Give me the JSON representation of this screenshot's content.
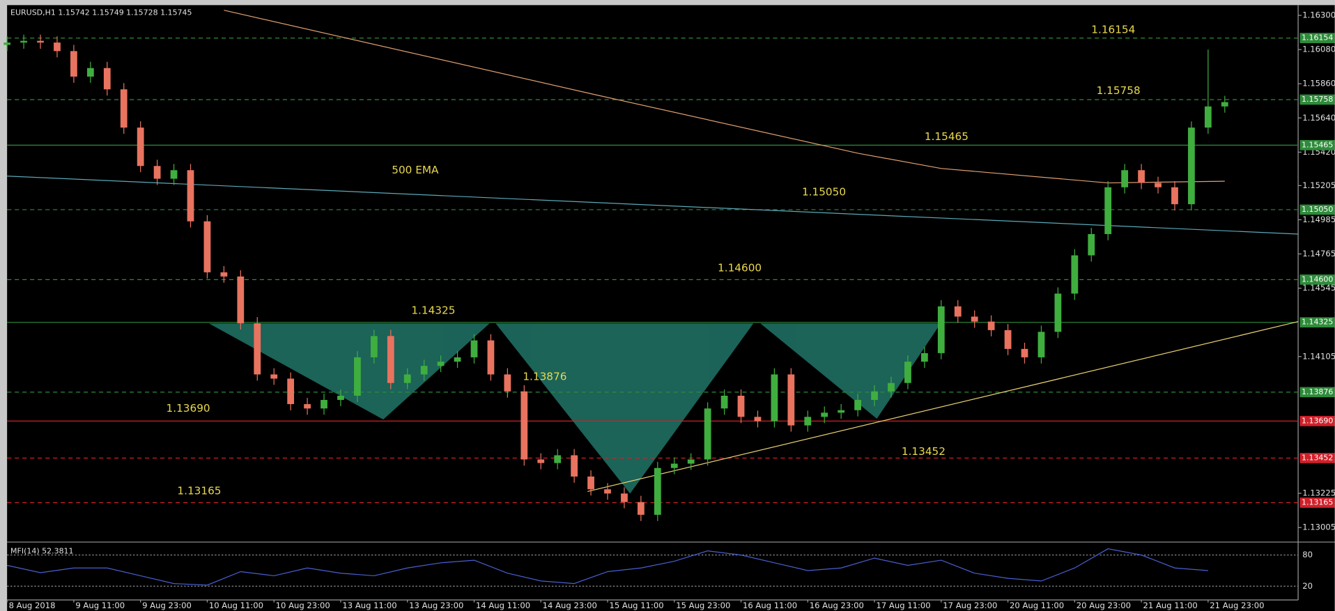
{
  "chart_data": {
    "type": "candlestick",
    "header": "EURUSD,H1  1.15742 1.15749 1.15728 1.15745",
    "annotation": "500 EMA",
    "up_color": "#3fae3f",
    "down_color": "#e8735f",
    "categories": [
      "8 Aug 2018",
      null,
      null,
      null,
      "9 Aug 11:00",
      null,
      null,
      null,
      "9 Aug 23:00",
      null,
      null,
      null,
      "10 Aug 11:00",
      null,
      null,
      null,
      "10 Aug 23:00",
      null,
      null,
      null,
      "13 Aug 11:00",
      null,
      null,
      null,
      "13 Aug 23:00",
      null,
      null,
      null,
      "14 Aug 11:00",
      null,
      null,
      null,
      "14 Aug 23:00",
      null,
      null,
      null,
      "15 Aug 11:00",
      null,
      null,
      null,
      "15 Aug 23:00",
      null,
      null,
      null,
      "16 Aug 11:00",
      null,
      null,
      null,
      "16 Aug 23:00",
      null,
      null,
      null,
      "17 Aug 11:00",
      null,
      null,
      null,
      "17 Aug 23:00",
      null,
      null,
      null,
      "20 Aug 11:00",
      null,
      null,
      null,
      "20 Aug 23:00",
      null,
      null,
      null,
      "21 Aug 11:00",
      null,
      null,
      null,
      "21 Aug 23:00",
      null
    ],
    "open": [
      1.1611,
      1.16125,
      1.16136,
      1.16125,
      1.1607,
      1.15906,
      1.15961,
      1.15824,
      1.15578,
      1.15331,
      1.15249,
      1.15304,
      1.14975,
      1.14647,
      1.1462,
      1.14319,
      1.1399,
      1.13963,
      1.13799,
      1.13771,
      1.13826,
      1.13853,
      1.141,
      1.14237,
      1.13935,
      1.1399,
      1.14045,
      1.14072,
      1.141,
      1.14209,
      1.1399,
      1.13881,
      1.13443,
      1.1342,
      1.1347,
      1.13333,
      1.13251,
      1.13224,
      1.13169,
      1.13087,
      1.13388,
      1.13416,
      1.13443,
      1.13771,
      1.13853,
      1.13717,
      1.13689,
      1.1399,
      1.13662,
      1.13717,
      1.13744,
      1.1376,
      1.13826,
      1.13881,
      1.13935,
      1.14072,
      1.14127,
      1.14428,
      1.14362,
      1.1433,
      1.14275,
      1.14154,
      1.141,
      1.14264,
      1.1451,
      1.14756,
      1.14893,
      1.15194,
      1.15304,
      1.15222,
      1.15194,
      1.15085,
      1.15578,
      1.15714
    ],
    "high": [
      1.16165,
      1.16176,
      1.16176,
      1.16165,
      1.1611,
      1.16001,
      1.16001,
      1.15864,
      1.15618,
      1.15371,
      1.15344,
      1.15344,
      1.15015,
      1.14687,
      1.1466,
      1.14359,
      1.1403,
      1.14003,
      1.13839,
      1.13866,
      1.13893,
      1.1414,
      1.14277,
      1.14277,
      1.1403,
      1.14085,
      1.14112,
      1.1414,
      1.14249,
      1.14249,
      1.1403,
      1.13921,
      1.13483,
      1.1351,
      1.1351,
      1.13373,
      1.13291,
      1.13264,
      1.13209,
      1.13428,
      1.13456,
      1.13483,
      1.13811,
      1.13893,
      1.13893,
      1.13757,
      1.1403,
      1.1403,
      1.13757,
      1.13784,
      1.138,
      1.13866,
      1.13921,
      1.13975,
      1.14112,
      1.14167,
      1.14468,
      1.14468,
      1.14402,
      1.1437,
      1.14315,
      1.14194,
      1.14304,
      1.1455,
      1.14796,
      1.14933,
      1.15234,
      1.15344,
      1.15344,
      1.15262,
      1.15234,
      1.15618,
      1.1608,
      1.15782
    ],
    "low": [
      1.1607,
      1.16085,
      1.16085,
      1.1603,
      1.15866,
      1.15866,
      1.15784,
      1.15538,
      1.15291,
      1.15209,
      1.15209,
      1.14935,
      1.14607,
      1.1458,
      1.14279,
      1.1395,
      1.13923,
      1.13759,
      1.13731,
      1.13731,
      1.13786,
      1.13813,
      1.1406,
      1.13895,
      1.13895,
      1.1395,
      1.14005,
      1.14032,
      1.1406,
      1.1395,
      1.13841,
      1.13403,
      1.1338,
      1.1338,
      1.13293,
      1.13211,
      1.13184,
      1.13129,
      1.13047,
      1.13047,
      1.13348,
      1.13376,
      1.13403,
      1.13731,
      1.13677,
      1.13649,
      1.13649,
      1.13622,
      1.13622,
      1.13677,
      1.13704,
      1.1372,
      1.13786,
      1.13841,
      1.13895,
      1.14032,
      1.14087,
      1.14322,
      1.1429,
      1.14235,
      1.14114,
      1.1406,
      1.1406,
      1.14224,
      1.1447,
      1.14716,
      1.14853,
      1.15154,
      1.15182,
      1.15154,
      1.15045,
      1.15045,
      1.15538,
      1.15674
    ],
    "close": [
      1.16125,
      1.16136,
      1.16125,
      1.1607,
      1.15906,
      1.15961,
      1.15824,
      1.15578,
      1.15331,
      1.15249,
      1.15304,
      1.14975,
      1.14647,
      1.1462,
      1.14319,
      1.1399,
      1.13963,
      1.13799,
      1.13771,
      1.13826,
      1.13853,
      1.141,
      1.14237,
      1.13935,
      1.1399,
      1.14045,
      1.14072,
      1.141,
      1.14209,
      1.1399,
      1.13881,
      1.13443,
      1.1342,
      1.1347,
      1.13333,
      1.13251,
      1.13224,
      1.13169,
      1.13087,
      1.13388,
      1.13416,
      1.13443,
      1.13771,
      1.13853,
      1.13717,
      1.13689,
      1.1399,
      1.13662,
      1.13717,
      1.13744,
      1.1376,
      1.13826,
      1.13881,
      1.13935,
      1.14072,
      1.14127,
      1.14428,
      1.14362,
      1.1433,
      1.14275,
      1.14154,
      1.141,
      1.14264,
      1.1451,
      1.14756,
      1.14893,
      1.15194,
      1.15304,
      1.15222,
      1.15194,
      1.15085,
      1.15578,
      1.15714,
      1.15742
    ],
    "ylim": [
      1.12917,
      1.16355
    ],
    "yticks": [
      {
        "value": 1.163,
        "label": "1.16300"
      },
      {
        "value": 1.1608,
        "label": "1.16080"
      },
      {
        "value": 1.1586,
        "label": "1.15860"
      },
      {
        "value": 1.1564,
        "label": "1.15640"
      },
      {
        "value": 1.1542,
        "label": "1.15420"
      },
      {
        "value": 1.15205,
        "label": "1.15205"
      },
      {
        "value": 1.14985,
        "label": "1.14985"
      },
      {
        "value": 1.14765,
        "label": "1.14765"
      },
      {
        "value": 1.14545,
        "label": "1.14545"
      },
      {
        "value": 1.14105,
        "label": "1.14105"
      },
      {
        "value": 1.13225,
        "label": "1.13225"
      },
      {
        "value": 1.13005,
        "label": "1.13005"
      }
    ],
    "levels": [
      {
        "price": 1.16154,
        "color": "#2e8b3a",
        "dashed": true
      },
      {
        "price": 1.15758,
        "color": "#2e8b3a",
        "dashed": true
      },
      {
        "price": 1.15465,
        "color": "#2e8b3a",
        "dashed": false
      },
      {
        "price": {
          "value": 1.1505,
          "label": "1.15050"
        },
        "color": "#2e8b3a",
        "dashed": true
      },
      {
        "price": {
          "value": 1.146,
          "label": "1.14600"
        },
        "color": "#2e8b3a",
        "dashed": true
      },
      {
        "price": 1.14325,
        "color": "#2e8b3a",
        "dashed": false
      },
      {
        "price": 1.13876,
        "color": "#2e8b3a",
        "dashed": true
      },
      {
        "price": {
          "value": 1.1369,
          "label": "1.13690"
        },
        "color": "#d0202a",
        "dashed": false
      },
      {
        "price": 1.13452,
        "color": "#d0202a",
        "dashed": true
      },
      {
        "price": 1.13165,
        "color": "#d0202a",
        "dashed": true
      }
    ],
    "overlays": [
      {
        "color": "#e0a070",
        "x": [
          13,
          35,
          51,
          56,
          66,
          73
        ],
        "values": [
          1.16333,
          1.15796,
          1.15413,
          1.15315,
          1.15222,
          1.15233
        ]
      },
      {
        "color": "#5aa9b8",
        "x": [
          0,
          77.4
        ],
        "values": [
          1.15266,
          1.14893
        ]
      },
      {
        "color": "#e8d070",
        "x": [
          34.8,
          77.4
        ],
        "values": [
          1.13237,
          1.1433
        ]
      }
    ],
    "mfi": {
      "label": "MFI(14) 52.3811",
      "color": "#4a5fd0",
      "ylim": [
        0,
        100
      ],
      "yticks": [
        80,
        20
      ],
      "x": [
        0,
        2,
        4,
        6,
        8,
        10,
        12,
        14,
        16,
        18,
        20,
        22,
        24,
        26,
        28,
        30,
        32,
        34,
        36,
        38,
        40,
        42,
        44,
        46,
        48,
        50,
        52,
        54,
        56,
        58,
        60,
        62,
        64,
        66,
        68,
        70,
        72
      ],
      "values": [
        60,
        46,
        55,
        55,
        40,
        25,
        22,
        48,
        40,
        55,
        45,
        40,
        55,
        65,
        70,
        45,
        30,
        25,
        48,
        55,
        68,
        88,
        80,
        65,
        50,
        55,
        74,
        60,
        70,
        45,
        35,
        30,
        55,
        92,
        80,
        55,
        50
      ]
    }
  }
}
